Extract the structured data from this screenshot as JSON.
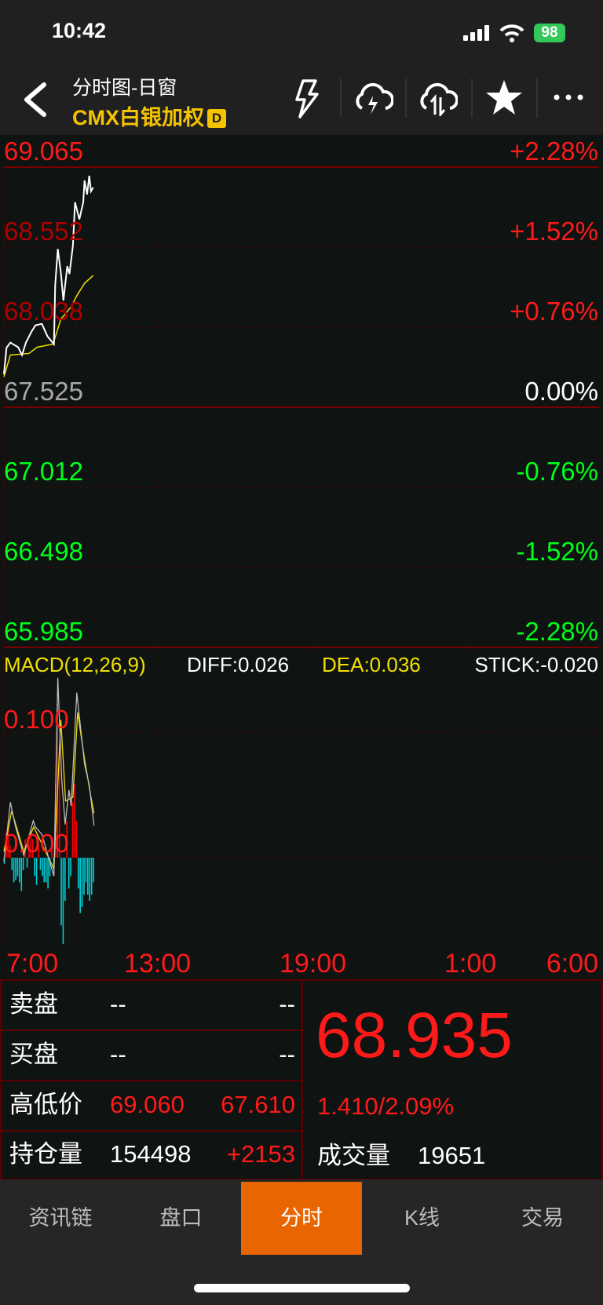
{
  "status_bar": {
    "time": "10:42",
    "battery": "98"
  },
  "header": {
    "title": "分时图-日窗",
    "subtitle": "CMX白银加权",
    "badge": "D",
    "icons": [
      "back-chevron-icon",
      "lightning-icon",
      "cloud-lightning-icon",
      "cloud-sync-icon",
      "star-icon",
      "more-icon"
    ]
  },
  "colors": {
    "up": "#ff1a1a",
    "down": "#00ff1a",
    "price_line": "#ffffff",
    "avg_line": "#f0e000",
    "stick_up": "#ff0000",
    "stick_down": "#00d0d8",
    "accent": "#e86500"
  },
  "price_axis": {
    "left": [
      {
        "v": "69.065",
        "c": "#ff1a1a"
      },
      {
        "v": "68.552",
        "c": "#b00000"
      },
      {
        "v": "68.038",
        "c": "#b00000"
      },
      {
        "v": "67.525",
        "c": "#a8a8a8"
      },
      {
        "v": "67.012",
        "c": "#00ff1a"
      },
      {
        "v": "66.498",
        "c": "#00ff1a"
      },
      {
        "v": "65.985",
        "c": "#00ff1a"
      }
    ],
    "right": [
      {
        "v": "+2.28%",
        "c": "#ff1a1a"
      },
      {
        "v": "+1.52%",
        "c": "#ff1a1a"
      },
      {
        "v": "+0.76%",
        "c": "#ff1a1a"
      },
      {
        "v": "0.00%",
        "c": "#ffffff"
      },
      {
        "v": "-0.76%",
        "c": "#00ff1a"
      },
      {
        "v": "-1.52%",
        "c": "#00ff1a"
      },
      {
        "v": "-2.28%",
        "c": "#00ff1a"
      }
    ]
  },
  "macd": {
    "label": "MACD(12,26,9)",
    "diff": "DIFF:0.026",
    "dea": "DEA:0.036",
    "stick": "STICK:-0.020",
    "axis": [
      "0.100",
      "0.000"
    ]
  },
  "time_axis": [
    "7:00",
    "13:00",
    "19:00",
    "1:00",
    "6:00"
  ],
  "chart_data": {
    "type": "line",
    "x_range": [
      "7:00",
      "6:00"
    ],
    "ylim": [
      65.985,
      69.065
    ],
    "base": 67.525,
    "price": [
      [
        "7:00",
        67.736
      ],
      [
        "7:06",
        67.907
      ],
      [
        "7:15",
        67.94
      ],
      [
        "7:33",
        67.91
      ],
      [
        "7:42",
        67.86
      ],
      [
        "7:51",
        67.94
      ],
      [
        "8:04",
        68.01
      ],
      [
        "8:13",
        68.05
      ],
      [
        "8:28",
        68.06
      ],
      [
        "8:41",
        67.98
      ],
      [
        "8:56",
        67.93
      ],
      [
        "8:59",
        68.31
      ],
      [
        "9:05",
        68.54
      ],
      [
        "9:12",
        68.39
      ],
      [
        "9:18",
        68.21
      ],
      [
        "9:27",
        68.43
      ],
      [
        "9:32",
        68.38
      ],
      [
        "9:40",
        68.56
      ],
      [
        "9:45",
        68.84
      ],
      [
        "9:55",
        68.73
      ],
      [
        "10:04",
        68.84
      ],
      [
        "10:07",
        68.98
      ],
      [
        "10:13",
        68.89
      ],
      [
        "10:18",
        69.01
      ],
      [
        "10:22",
        68.91
      ],
      [
        "10:27",
        68.935
      ]
    ],
    "average": [
      [
        "7:00",
        67.72
      ],
      [
        "7:15",
        67.86
      ],
      [
        "7:58",
        67.87
      ],
      [
        "8:17",
        67.91
      ],
      [
        "8:54",
        67.93
      ],
      [
        "9:12",
        68.09
      ],
      [
        "9:36",
        68.17
      ],
      [
        "9:49",
        68.24
      ],
      [
        "10:07",
        68.32
      ],
      [
        "10:27",
        68.37
      ]
    ],
    "macd": {
      "ylim": [
        -0.07,
        0.15
      ],
      "diff": [
        [
          "7:00",
          -0.003
        ],
        [
          "7:15",
          0.045
        ],
        [
          "7:27",
          0.025
        ],
        [
          "7:46",
          0.002
        ],
        [
          "8:08",
          0.03
        ],
        [
          "8:13",
          0.025
        ],
        [
          "8:28",
          0.019
        ],
        [
          "8:56",
          -0.015
        ],
        [
          "9:05",
          0.146
        ],
        [
          "9:14",
          0.064
        ],
        [
          "9:22",
          0.027
        ],
        [
          "9:31",
          0.055
        ],
        [
          "9:36",
          0.042
        ],
        [
          "9:49",
          0.134
        ],
        [
          "10:07",
          0.076
        ],
        [
          "10:18",
          0.059
        ],
        [
          "10:29",
          0.026
        ]
      ],
      "dea": [
        [
          "7:00",
          0.005
        ],
        [
          "7:18",
          0.038
        ],
        [
          "7:46",
          0.005
        ],
        [
          "8:09",
          0.025
        ],
        [
          "8:56",
          -0.009
        ],
        [
          "9:12",
          0.112
        ],
        [
          "9:23",
          0.046
        ],
        [
          "9:40",
          0.049
        ],
        [
          "9:51",
          0.118
        ],
        [
          "10:07",
          0.08
        ],
        [
          "10:22",
          0.049
        ],
        [
          "10:29",
          0.036
        ]
      ],
      "stick_start": "7:01",
      "stick_interval_min": 4.4,
      "stick": [
        -0.005,
        0.02,
        0.025,
        0.01,
        -0.01,
        -0.02,
        -0.018,
        -0.015,
        -0.02,
        -0.027,
        -0.01,
        0.015,
        -0.008,
        0.01,
        0.02,
        0.015,
        -0.015,
        -0.022,
        0.01,
        -0.01,
        -0.015,
        -0.02,
        -0.02,
        -0.025,
        -0.015,
        0.01,
        -0.01,
        0.06,
        0.125,
        0.085,
        -0.055,
        -0.07,
        -0.035,
        0.03,
        -0.025,
        -0.015,
        0.045,
        0.06,
        0.03,
        -0.025,
        -0.045,
        -0.04,
        -0.03,
        -0.02,
        -0.03,
        -0.035,
        -0.03,
        -0.02
      ]
    }
  },
  "quote": {
    "rows": [
      {
        "label": "卖盘",
        "a": "--",
        "b": "--"
      },
      {
        "label": "买盘",
        "a": "--",
        "b": "--"
      },
      {
        "label": "高低价",
        "a": "69.060",
        "b": "67.610"
      },
      {
        "label": "持仓量",
        "a": "154498",
        "b": "+2153"
      }
    ],
    "last": "68.935",
    "change": "1.410/2.09%",
    "volume_label": "成交量",
    "volume": "19651"
  },
  "tabs": [
    {
      "label": "资讯链"
    },
    {
      "label": "盘口"
    },
    {
      "label": "分时",
      "active": true
    },
    {
      "label": "K线"
    },
    {
      "label": "交易"
    }
  ]
}
